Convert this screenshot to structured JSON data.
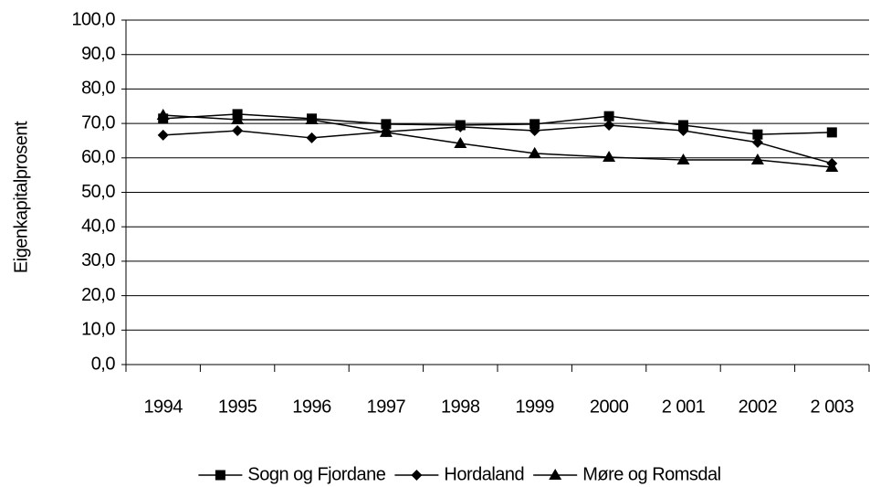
{
  "chart_data": {
    "type": "line",
    "y_label": "Eigenkapitalprosent",
    "categories": [
      "1994",
      "1995",
      "1996",
      "1997",
      "1998",
      "1999",
      "2000",
      "2 001",
      "2002",
      "2 003"
    ],
    "series": [
      {
        "name": "Sogn og Fjordane",
        "color": "#000000",
        "marker": "square",
        "values": [
          71.4,
          72.7,
          71.4,
          69.8,
          69.5,
          69.8,
          72.1,
          69.5,
          66.8,
          67.4
        ]
      },
      {
        "name": "Hordaland",
        "color": "#000000",
        "marker": "diamond",
        "values": [
          66.6,
          67.9,
          65.8,
          67.6,
          69.0,
          67.9,
          69.5,
          67.9,
          64.5,
          58.4
        ]
      },
      {
        "name": "Møre og Romsdal",
        "color": "#000000",
        "marker": "triangle",
        "values": [
          72.4,
          71.1,
          71.1,
          67.4,
          64.2,
          61.3,
          60.2,
          59.4,
          59.4,
          57.3
        ]
      }
    ],
    "ylim": [
      0,
      100
    ],
    "yticks": [
      {
        "value": 0,
        "label": "0,0"
      },
      {
        "value": 10,
        "label": "10,0"
      },
      {
        "value": 20,
        "label": "20,0"
      },
      {
        "value": 30,
        "label": "30,0"
      },
      {
        "value": 40,
        "label": "40,0"
      },
      {
        "value": 50,
        "label": "50,0"
      },
      {
        "value": 60,
        "label": "60,0"
      },
      {
        "value": 70,
        "label": "70,0"
      },
      {
        "value": 80,
        "label": "80,0"
      },
      {
        "value": 90,
        "label": "90,0"
      },
      {
        "value": 100,
        "label": "100,0"
      }
    ],
    "grid": true,
    "legend": "bottom"
  }
}
